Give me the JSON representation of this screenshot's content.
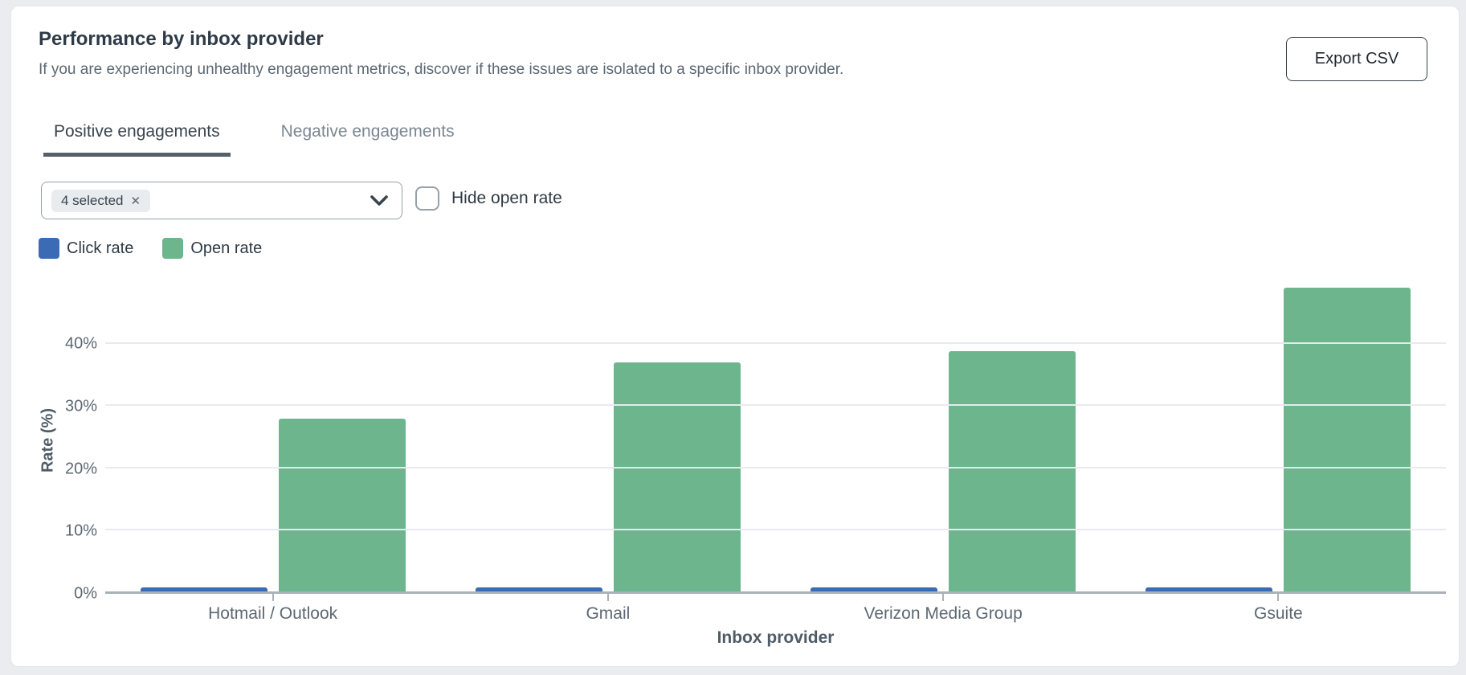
{
  "card": {
    "title": "Performance by inbox provider",
    "subtitle": "If you are experiencing unhealthy engagement metrics, discover if these issues are isolated to a specific inbox provider.",
    "export_button_label": "Export CSV"
  },
  "tabs": [
    {
      "label": "Positive engagements",
      "active": true
    },
    {
      "label": "Negative engagements",
      "active": false
    }
  ],
  "filters": {
    "provider_select": {
      "chip_label": "4 selected",
      "chip_remove_glyph": "✕",
      "chevron_icon": "chevron-down"
    },
    "hide_open_rate": {
      "label": "Hide open rate",
      "checked": false
    }
  },
  "legend": [
    {
      "label": "Click rate",
      "color": "#3b6bb4"
    },
    {
      "label": "Open rate",
      "color": "#6db58c"
    }
  ],
  "colors": {
    "click_rate": "#3b6bb4",
    "open_rate": "#6db58c",
    "gridline": "#e8eaee",
    "axis_line": "#a9b1b9",
    "accent_text": "#2e3a46"
  },
  "chart_data": {
    "type": "bar",
    "categories": [
      "Hotmail / Outlook",
      "Gmail",
      "Verizon Media Group",
      "Gsuite"
    ],
    "series": [
      {
        "name": "Click rate",
        "color": "#3b6bb4",
        "values": [
          0.6,
          0.6,
          0.6,
          0.6
        ]
      },
      {
        "name": "Open rate",
        "color": "#6db58c",
        "values": [
          27.8,
          36.9,
          38.7,
          49.0
        ]
      }
    ],
    "title": "",
    "xlabel": "Inbox provider",
    "ylabel": "Rate (%)",
    "yticks": [
      "0%",
      "10%",
      "20%",
      "30%",
      "40%"
    ],
    "ytick_values": [
      0,
      10,
      20,
      30,
      40
    ],
    "ylim": [
      0,
      55.3
    ],
    "grid": true,
    "legend_position": "top-left"
  }
}
